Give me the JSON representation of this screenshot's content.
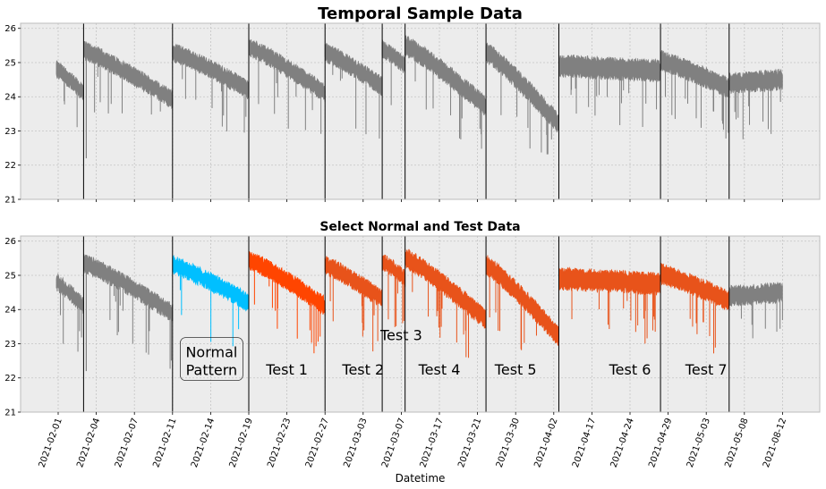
{
  "chart_data": [
    {
      "type": "line",
      "title": "Temporal Sample Data",
      "ylim": [
        21,
        26.15
      ],
      "yticks": [
        21,
        22,
        23,
        24,
        25,
        26
      ],
      "grid": true,
      "xticks": [
        "2021-02-01",
        "2021-02-04",
        "2021-02-07",
        "2021-02-11",
        "2021-02-14",
        "2021-02-19",
        "2021-02-23",
        "2021-02-27",
        "2021-03-03",
        "2021-03-07",
        "2021-03-17",
        "2021-03-21",
        "2021-03-30",
        "2021-04-02",
        "2021-04-17",
        "2021-04-24",
        "2021-04-29",
        "2021-05-03",
        "2021-05-08",
        "2021-08-12"
      ],
      "series": [
        {
          "color": "#808080",
          "segments": [
            {
              "start": "2021-01-31",
              "end": "2021-02-03",
              "y_start": 24.8,
              "y_end": 24.1,
              "spread": 0.35
            },
            {
              "start": "2021-02-03",
              "end": "2021-02-11",
              "y_start": 25.35,
              "y_end": 23.9,
              "spread": 0.4
            },
            {
              "start": "2021-02-11",
              "end": "2021-02-19",
              "y_start": 25.3,
              "y_end": 24.2,
              "spread": 0.4
            },
            {
              "start": "2021-02-19",
              "end": "2021-02-27",
              "y_start": 25.45,
              "y_end": 24.1,
              "spread": 0.4
            },
            {
              "start": "2021-02-27",
              "end": "2021-03-05",
              "y_start": 25.3,
              "y_end": 24.3,
              "spread": 0.4
            },
            {
              "start": "2021-03-05",
              "end": "2021-03-08",
              "y_start": 25.4,
              "y_end": 24.9,
              "spread": 0.35
            },
            {
              "start": "2021-03-08",
              "end": "2021-03-23",
              "y_start": 25.5,
              "y_end": 23.7,
              "spread": 0.45
            },
            {
              "start": "2021-03-23",
              "end": "2021-04-04",
              "y_start": 25.3,
              "y_end": 23.2,
              "spread": 0.45
            },
            {
              "start": "2021-04-04",
              "end": "2021-04-28",
              "y_start": 24.9,
              "y_end": 24.75,
              "spread": 0.5
            },
            {
              "start": "2021-04-28",
              "end": "2021-05-06",
              "y_start": 25.05,
              "y_end": 24.25,
              "spread": 0.45
            },
            {
              "start": "2021-05-06",
              "end": "2021-08-12",
              "y_start": 24.4,
              "y_end": 24.5,
              "spread": 0.45
            }
          ]
        }
      ],
      "vlines": [
        "2021-02-03",
        "2021-02-11",
        "2021-02-19",
        "2021-02-27",
        "2021-03-05",
        "2021-03-08",
        "2021-03-23",
        "2021-04-04",
        "2021-04-28",
        "2021-05-06"
      ]
    },
    {
      "type": "line",
      "title": "Select Normal and Test Data",
      "xlabel": "Datetime",
      "ylim": [
        21,
        26.15
      ],
      "yticks": [
        21,
        22,
        23,
        24,
        25,
        26
      ],
      "grid": true,
      "xticks": [
        "2021-02-01",
        "2021-02-04",
        "2021-02-07",
        "2021-02-11",
        "2021-02-14",
        "2021-02-19",
        "2021-02-23",
        "2021-02-27",
        "2021-03-03",
        "2021-03-07",
        "2021-03-17",
        "2021-03-21",
        "2021-03-30",
        "2021-04-02",
        "2021-04-17",
        "2021-04-24",
        "2021-04-29",
        "2021-05-03",
        "2021-05-08",
        "2021-08-12"
      ],
      "series": [
        {
          "color": "#808080",
          "segments": [
            {
              "start": "2021-01-31",
              "end": "2021-02-03",
              "y_start": 24.8,
              "y_end": 24.1,
              "spread": 0.35
            },
            {
              "start": "2021-02-03",
              "end": "2021-02-11",
              "y_start": 25.35,
              "y_end": 23.9,
              "spread": 0.4
            },
            {
              "start": "2021-05-06",
              "end": "2021-08-12",
              "y_start": 24.4,
              "y_end": 24.5,
              "spread": 0.45
            }
          ]
        },
        {
          "color": "#00bfff",
          "segments": [
            {
              "start": "2021-02-11",
              "end": "2021-02-19",
              "y_start": 25.3,
              "y_end": 24.2,
              "spread": 0.4
            }
          ]
        },
        {
          "color": "#ff4500",
          "segments": [
            {
              "start": "2021-02-19",
              "end": "2021-02-27",
              "y_start": 25.45,
              "y_end": 24.1,
              "spread": 0.4
            }
          ]
        },
        {
          "color": "#e8531a",
          "segments": [
            {
              "start": "2021-02-27",
              "end": "2021-03-05",
              "y_start": 25.3,
              "y_end": 24.3,
              "spread": 0.4
            },
            {
              "start": "2021-03-05",
              "end": "2021-03-08",
              "y_start": 25.4,
              "y_end": 24.9,
              "spread": 0.35
            },
            {
              "start": "2021-03-08",
              "end": "2021-03-23",
              "y_start": 25.5,
              "y_end": 23.7,
              "spread": 0.45
            },
            {
              "start": "2021-03-23",
              "end": "2021-04-04",
              "y_start": 25.3,
              "y_end": 23.2,
              "spread": 0.45
            },
            {
              "start": "2021-04-04",
              "end": "2021-04-28",
              "y_start": 24.9,
              "y_end": 24.75,
              "spread": 0.5
            },
            {
              "start": "2021-04-28",
              "end": "2021-05-06",
              "y_start": 25.05,
              "y_end": 24.25,
              "spread": 0.45
            }
          ]
        }
      ],
      "vlines": [
        "2021-02-03",
        "2021-02-11",
        "2021-02-19",
        "2021-02-27",
        "2021-03-05",
        "2021-03-08",
        "2021-03-23",
        "2021-04-04",
        "2021-04-28",
        "2021-05-06"
      ],
      "annotations": [
        {
          "text": "Normal Pattern",
          "lines": [
            "Normal",
            "Pattern"
          ],
          "x": "2021-02-14",
          "y": 22.5,
          "color": "#00bfff",
          "boxed": true
        },
        {
          "text": "Test 1",
          "x": "2021-02-23",
          "y": 22.1,
          "color": "#000000"
        },
        {
          "text": "Test 2",
          "x": "2021-03-03",
          "y": 22.1,
          "color": "#000000"
        },
        {
          "text": "Test 3",
          "x": "2021-03-07",
          "y": 23.1,
          "color": "#000000"
        },
        {
          "text": "Test 4",
          "x": "2021-03-17",
          "y": 22.1,
          "color": "#000000"
        },
        {
          "text": "Test 5",
          "x": "2021-03-30",
          "y": 22.1,
          "color": "#000000"
        },
        {
          "text": "Test 6",
          "x": "2021-04-24",
          "y": 22.1,
          "color": "#000000"
        },
        {
          "text": "Test 7",
          "x": "2021-05-03",
          "y": 22.1,
          "color": "#000000"
        }
      ]
    }
  ]
}
